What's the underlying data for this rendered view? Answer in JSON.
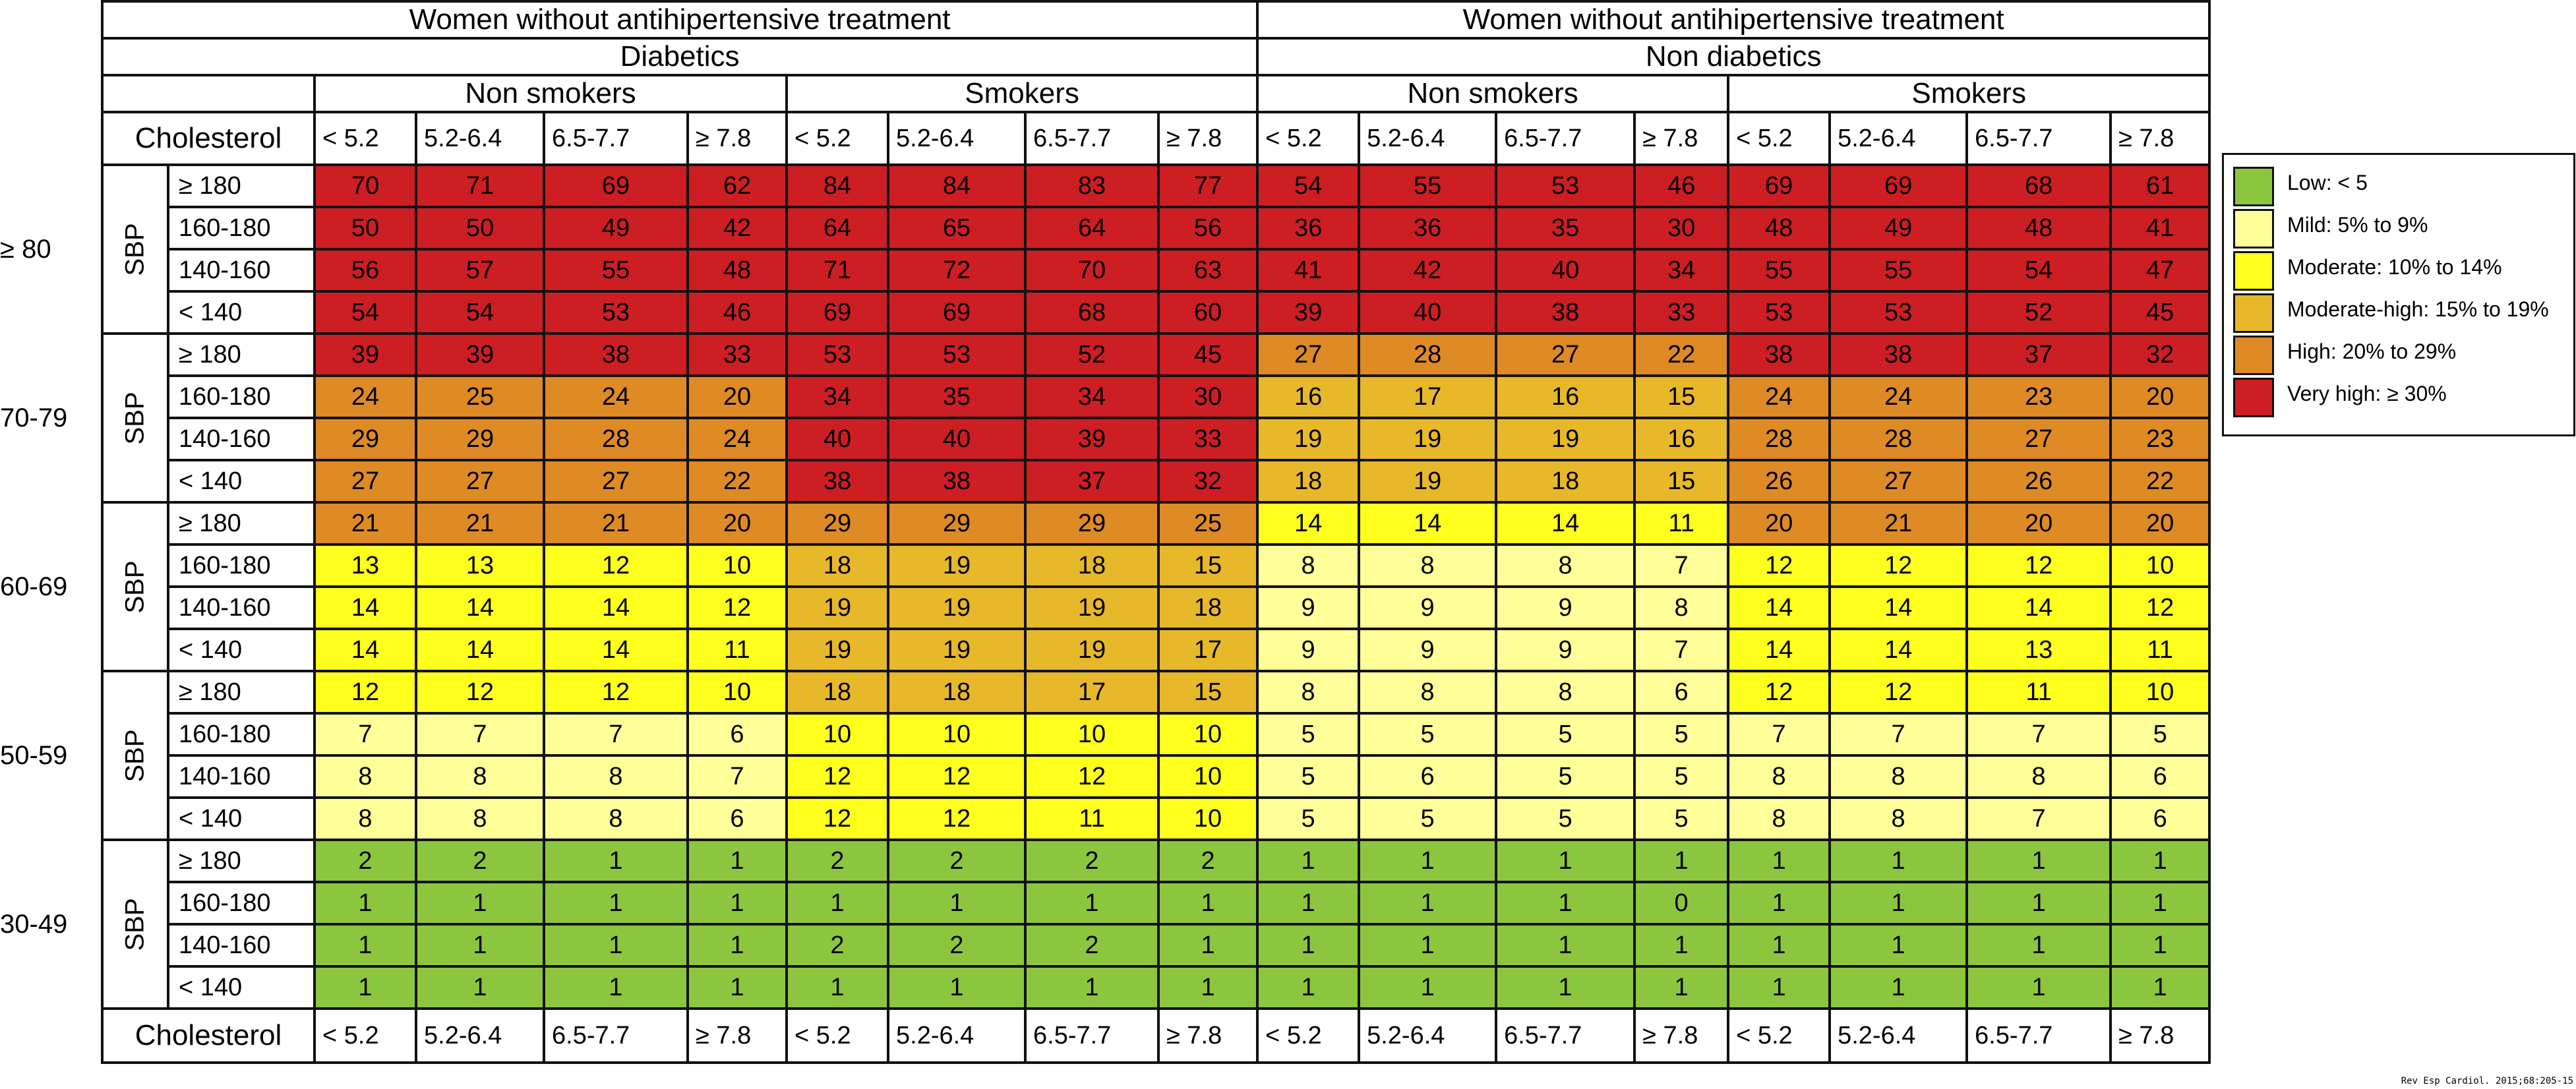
{
  "colors": {
    "low": "#8CC63F",
    "mild": "#FFFF99",
    "moderate": "#FFFF1E",
    "moderate_high": "#E8B82B",
    "high": "#DE8A25",
    "very_high": "#CC1E23"
  },
  "headers": {
    "left_title": "Women without antihipertensive treatment",
    "right_title": "Women without antihipertensive treatment",
    "left_group": "Diabetics",
    "right_group": "Non diabetics",
    "subgroups": [
      "Non smokers",
      "Smokers",
      "Non smokers",
      "Smokers"
    ],
    "cholesterol_label": "Cholesterol",
    "cholesterol_levels": [
      "< 5.2",
      "5.2-6.4",
      "6.5-7.7",
      "≥ 7.8"
    ],
    "sbp_label": "SBP",
    "sbp_levels": [
      "≥ 180",
      "160-180",
      "140-160",
      "< 140"
    ]
  },
  "legend": [
    {
      "key": "low",
      "label": "Low: < 5"
    },
    {
      "key": "mild",
      "label": "Mild: 5% to 9%"
    },
    {
      "key": "moderate",
      "label": "Moderate: 10% to 14%"
    },
    {
      "key": "moderate_high",
      "label": "Moderate-high: 15% to 19%"
    },
    {
      "key": "high",
      "label": "High: 20% to 29%"
    },
    {
      "key": "very_high",
      "label": "Very high: ≥ 30%"
    }
  ],
  "source": "Rev Esp Cardiol. 2015;68:205-15",
  "chart_data": {
    "type": "heatmap",
    "title": "Women without antihipertensive treatment",
    "column_groups": [
      {
        "group": "Diabetics",
        "subgroup": "Non smokers"
      },
      {
        "group": "Diabetics",
        "subgroup": "Smokers"
      },
      {
        "group": "Non diabetics",
        "subgroup": "Non smokers"
      },
      {
        "group": "Non diabetics",
        "subgroup": "Smokers"
      }
    ],
    "cholesterol": [
      "< 5.2",
      "5.2-6.4",
      "6.5-7.7",
      "≥ 7.8"
    ],
    "sbp": [
      "≥ 180",
      "160-180",
      "140-160",
      "< 140"
    ],
    "age_groups": [
      {
        "age": "≥ 80",
        "rows": [
          [
            70,
            71,
            69,
            62,
            84,
            84,
            83,
            77,
            54,
            55,
            53,
            46,
            69,
            69,
            68,
            61
          ],
          [
            50,
            50,
            49,
            42,
            64,
            65,
            64,
            56,
            36,
            36,
            35,
            30,
            48,
            49,
            48,
            41
          ],
          [
            56,
            57,
            55,
            48,
            71,
            72,
            70,
            63,
            41,
            42,
            40,
            34,
            55,
            55,
            54,
            47
          ],
          [
            54,
            54,
            53,
            46,
            69,
            69,
            68,
            60,
            39,
            40,
            38,
            33,
            53,
            53,
            52,
            45
          ]
        ]
      },
      {
        "age": "70-79",
        "rows": [
          [
            39,
            39,
            38,
            33,
            53,
            53,
            52,
            45,
            27,
            28,
            27,
            22,
            38,
            38,
            37,
            32
          ],
          [
            24,
            25,
            24,
            20,
            34,
            35,
            34,
            30,
            16,
            17,
            16,
            15,
            24,
            24,
            23,
            20
          ],
          [
            29,
            29,
            28,
            24,
            40,
            40,
            39,
            33,
            19,
            19,
            19,
            16,
            28,
            28,
            27,
            23
          ],
          [
            27,
            27,
            27,
            22,
            38,
            38,
            37,
            32,
            18,
            19,
            18,
            15,
            26,
            27,
            26,
            22
          ]
        ]
      },
      {
        "age": "60-69",
        "rows": [
          [
            21,
            21,
            21,
            20,
            29,
            29,
            29,
            25,
            14,
            14,
            14,
            11,
            20,
            21,
            20,
            20
          ],
          [
            13,
            13,
            12,
            10,
            18,
            19,
            18,
            15,
            8,
            8,
            8,
            7,
            12,
            12,
            12,
            10
          ],
          [
            14,
            14,
            14,
            12,
            19,
            19,
            19,
            18,
            9,
            9,
            9,
            8,
            14,
            14,
            14,
            12
          ],
          [
            14,
            14,
            14,
            11,
            19,
            19,
            19,
            17,
            9,
            9,
            9,
            7,
            14,
            14,
            13,
            11
          ]
        ]
      },
      {
        "age": "50-59",
        "rows": [
          [
            12,
            12,
            12,
            10,
            18,
            18,
            17,
            15,
            8,
            8,
            8,
            6,
            12,
            12,
            11,
            10
          ],
          [
            7,
            7,
            7,
            6,
            10,
            10,
            10,
            10,
            5,
            5,
            5,
            5,
            7,
            7,
            7,
            5
          ],
          [
            8,
            8,
            8,
            7,
            12,
            12,
            12,
            10,
            5,
            6,
            5,
            5,
            8,
            8,
            8,
            6
          ],
          [
            8,
            8,
            8,
            6,
            12,
            12,
            11,
            10,
            5,
            5,
            5,
            5,
            8,
            8,
            7,
            6
          ]
        ]
      },
      {
        "age": "30-49",
        "rows": [
          [
            2,
            2,
            1,
            1,
            2,
            2,
            2,
            2,
            1,
            1,
            1,
            1,
            1,
            1,
            1,
            1
          ],
          [
            1,
            1,
            1,
            1,
            1,
            1,
            1,
            1,
            1,
            1,
            1,
            0,
            1,
            1,
            1,
            1
          ],
          [
            1,
            1,
            1,
            1,
            2,
            2,
            2,
            1,
            1,
            1,
            1,
            1,
            1,
            1,
            1,
            1
          ],
          [
            1,
            1,
            1,
            1,
            1,
            1,
            1,
            1,
            1,
            1,
            1,
            1,
            1,
            1,
            1,
            1
          ]
        ]
      }
    ]
  }
}
